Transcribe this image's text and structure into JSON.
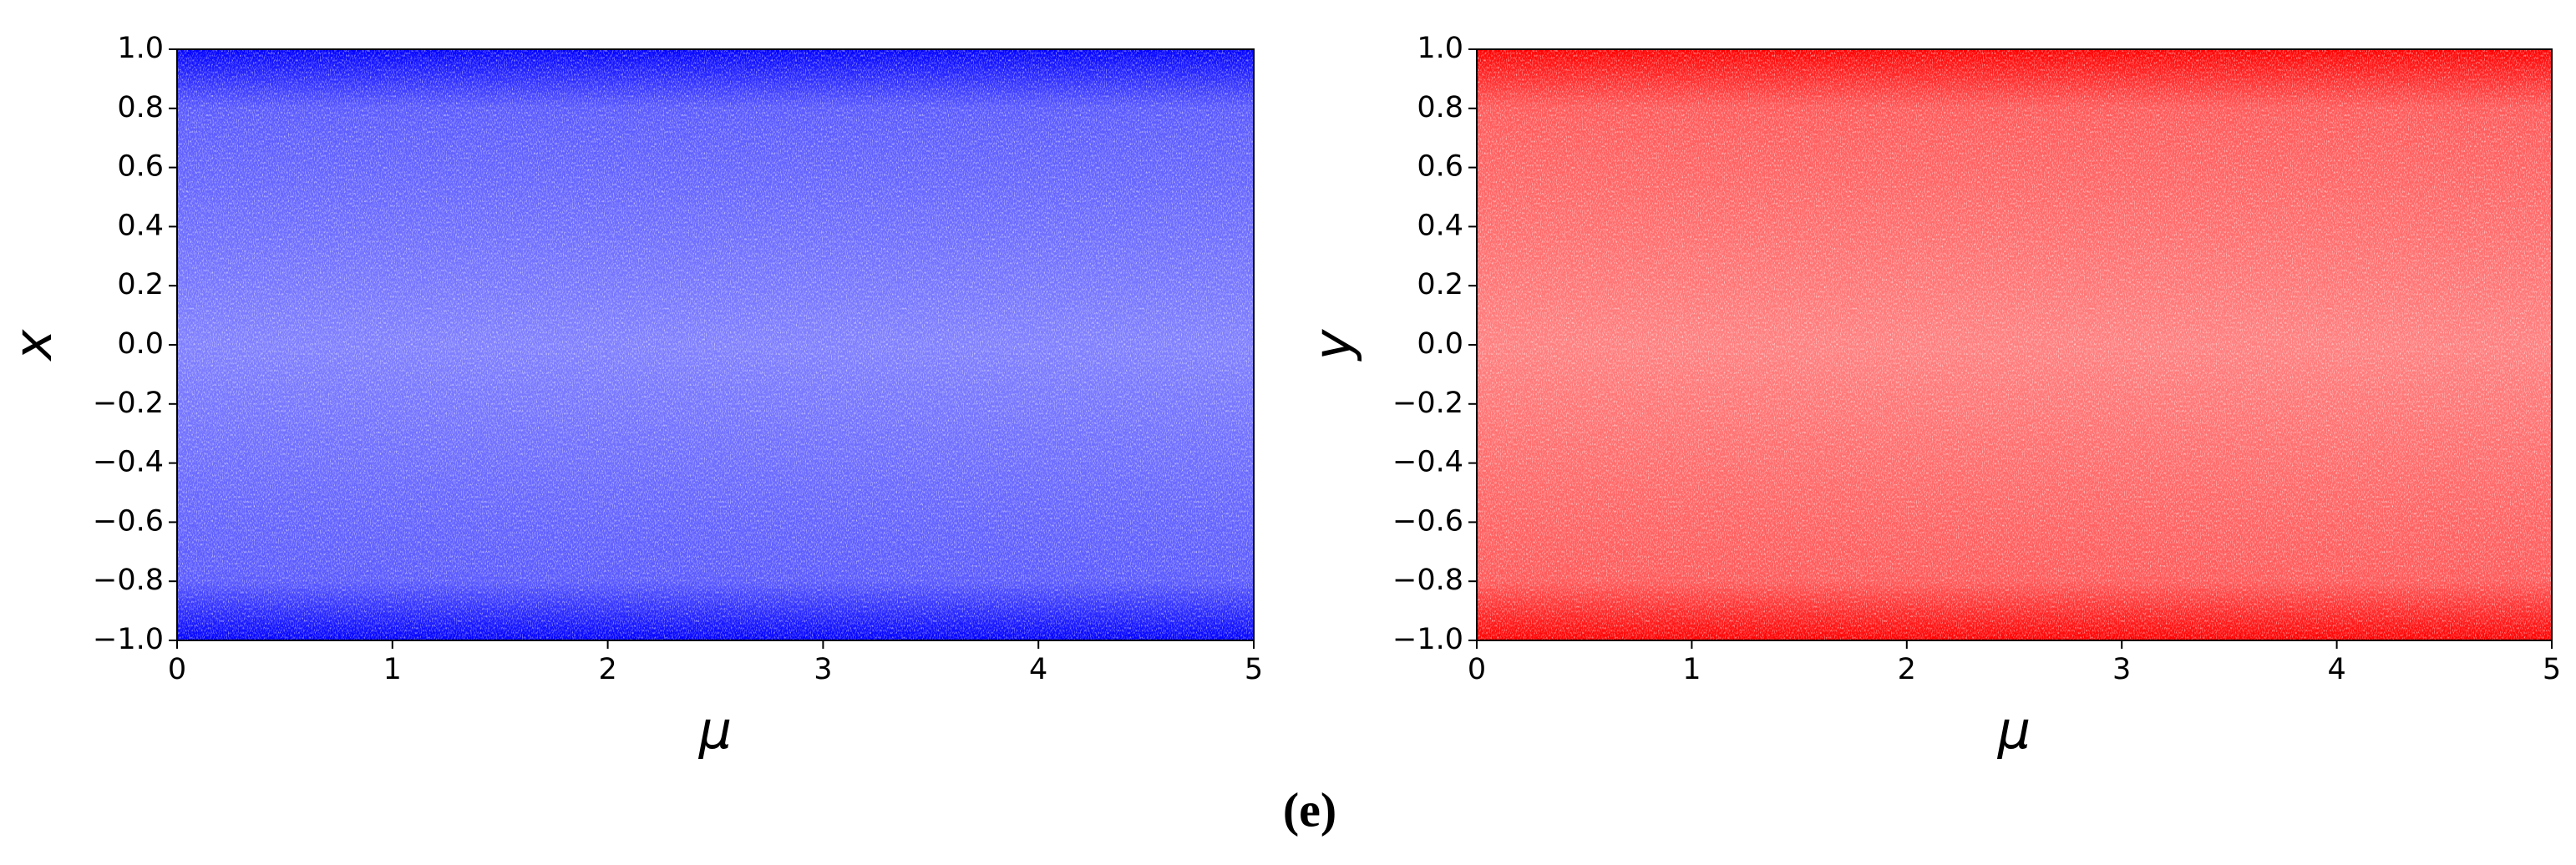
{
  "caption": "(e)",
  "chart_data": [
    {
      "type": "density",
      "xlabel": "μ",
      "ylabel": "x",
      "color": "#0000ff",
      "x": [
        0,
        5
      ],
      "lower": [
        -1,
        -1
      ],
      "upper": [
        1,
        1
      ],
      "xlim": [
        0,
        5
      ],
      "ylim": [
        -1,
        1
      ],
      "xticks": [
        0,
        1,
        2,
        3,
        4,
        5
      ],
      "yticks": [
        {
          "value": -1,
          "label": "−1.0"
        },
        {
          "value": -0.8,
          "label": "−0.8"
        },
        {
          "value": -0.6,
          "label": "−0.6"
        },
        {
          "value": -0.4,
          "label": "−0.4"
        },
        {
          "value": -0.2,
          "label": "−0.2"
        },
        {
          "value": 0,
          "label": "0.0"
        },
        0.2,
        0.4,
        0.6,
        0.8,
        {
          "value": 1,
          "label": "1.0"
        }
      ]
    },
    {
      "type": "density",
      "xlabel": "μ",
      "ylabel": "y",
      "color": "#ff0000",
      "x": [
        0,
        5
      ],
      "lower": [
        -1,
        -1
      ],
      "upper": [
        1,
        1
      ],
      "xlim": [
        0,
        5
      ],
      "ylim": [
        -1,
        1
      ],
      "xticks": [
        0,
        1,
        2,
        3,
        4,
        5
      ],
      "yticks": [
        {
          "value": -1,
          "label": "−1.0"
        },
        {
          "value": -0.8,
          "label": "−0.8"
        },
        {
          "value": -0.6,
          "label": "−0.6"
        },
        {
          "value": -0.4,
          "label": "−0.4"
        },
        {
          "value": -0.2,
          "label": "−0.2"
        },
        {
          "value": 0,
          "label": "0.0"
        },
        0.2,
        0.4,
        0.6,
        0.8,
        {
          "value": 1,
          "label": "1.0"
        }
      ]
    }
  ]
}
